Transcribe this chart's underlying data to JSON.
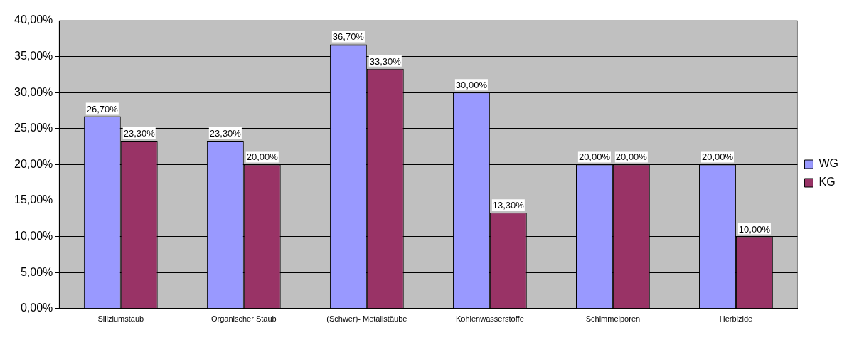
{
  "chart_data": {
    "type": "bar",
    "categories": [
      "Siliziumstaub",
      "Organischer Staub",
      "(Schwer)- Metallstäube",
      "Kohlenwasserstoffe",
      "Schimmelporen",
      "Herbizide"
    ],
    "series": [
      {
        "name": "WG",
        "color": "#9999ff",
        "values": [
          26.7,
          23.3,
          36.7,
          30,
          20,
          20
        ],
        "value_labels": [
          "26,70%",
          "23,30%",
          "36,70%",
          "30,00%",
          "20,00%",
          "20,00%"
        ]
      },
      {
        "name": "KG",
        "color": "#993366",
        "values": [
          23.3,
          20,
          33.3,
          13.3,
          20,
          10
        ],
        "value_labels": [
          "23,30%",
          "20,00%",
          "33,30%",
          "13,30%",
          "20,00%",
          "10,00%"
        ]
      }
    ],
    "ylim": [
      0,
      40
    ],
    "yticks": [
      {
        "value": 0,
        "label": "0,00%"
      },
      {
        "value": 5,
        "label": "5,00%"
      },
      {
        "value": 10,
        "label": "10,00%"
      },
      {
        "value": 15,
        "label": "15,00%"
      },
      {
        "value": 20,
        "label": "20,00%"
      },
      {
        "value": 25,
        "label": "25,00%"
      },
      {
        "value": 30,
        "label": "30,00%"
      },
      {
        "value": 35,
        "label": "35,00%"
      },
      {
        "value": 40,
        "label": "40,00%"
      }
    ],
    "grid": "y",
    "legend": "right"
  }
}
